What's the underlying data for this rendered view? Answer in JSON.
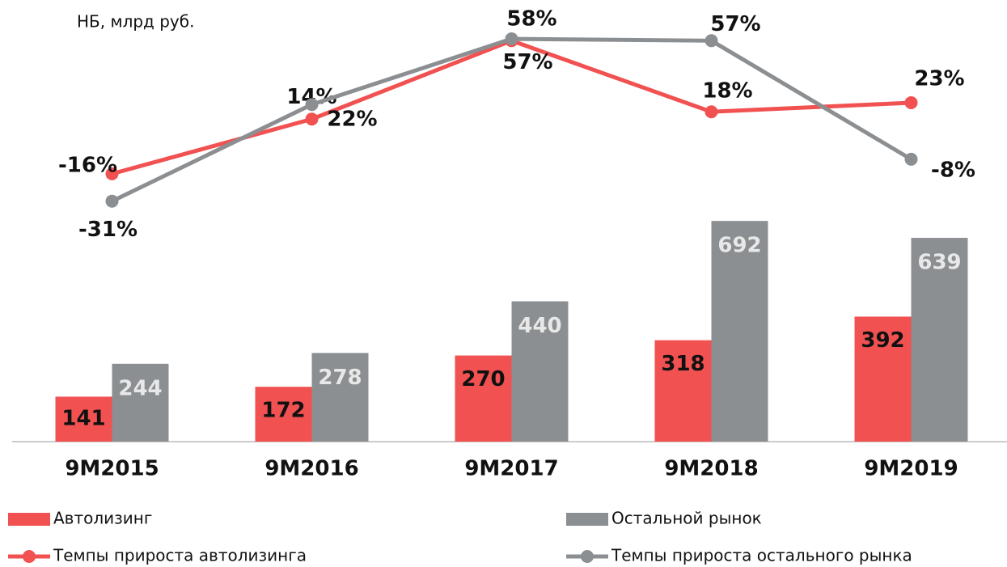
{
  "chart_data": {
    "type": "bar",
    "title": "НБ, млрд руб.",
    "categories": [
      "9M2015",
      "9M2016",
      "9M2017",
      "9M2018",
      "9M2019"
    ],
    "ylim": [
      0,
      700
    ],
    "y2lim": [
      -40,
      70
    ],
    "series": [
      {
        "name": "Автолизинг",
        "type": "bar",
        "color": "#f25151",
        "values": [
          141,
          172,
          270,
          318,
          392
        ]
      },
      {
        "name": "Остальной рынок",
        "type": "bar",
        "color": "#8c8f92",
        "values": [
          244,
          278,
          440,
          692,
          639
        ]
      },
      {
        "name": "Темпы прироста автолизинга",
        "type": "line",
        "axis": "y2",
        "color": "#f25151",
        "values": [
          -16,
          14,
          57,
          18,
          23
        ],
        "value_labels": [
          "-16%",
          "14%",
          "57%",
          "18%",
          "23%"
        ]
      },
      {
        "name": "Темпы прироста остального рынка",
        "type": "line",
        "axis": "y2",
        "color": "#8c8f92",
        "values": [
          -31,
          22,
          58,
          57,
          -8
        ],
        "value_labels": [
          "-31%",
          "22%",
          "58%",
          "57%",
          "-8%"
        ]
      }
    ]
  }
}
